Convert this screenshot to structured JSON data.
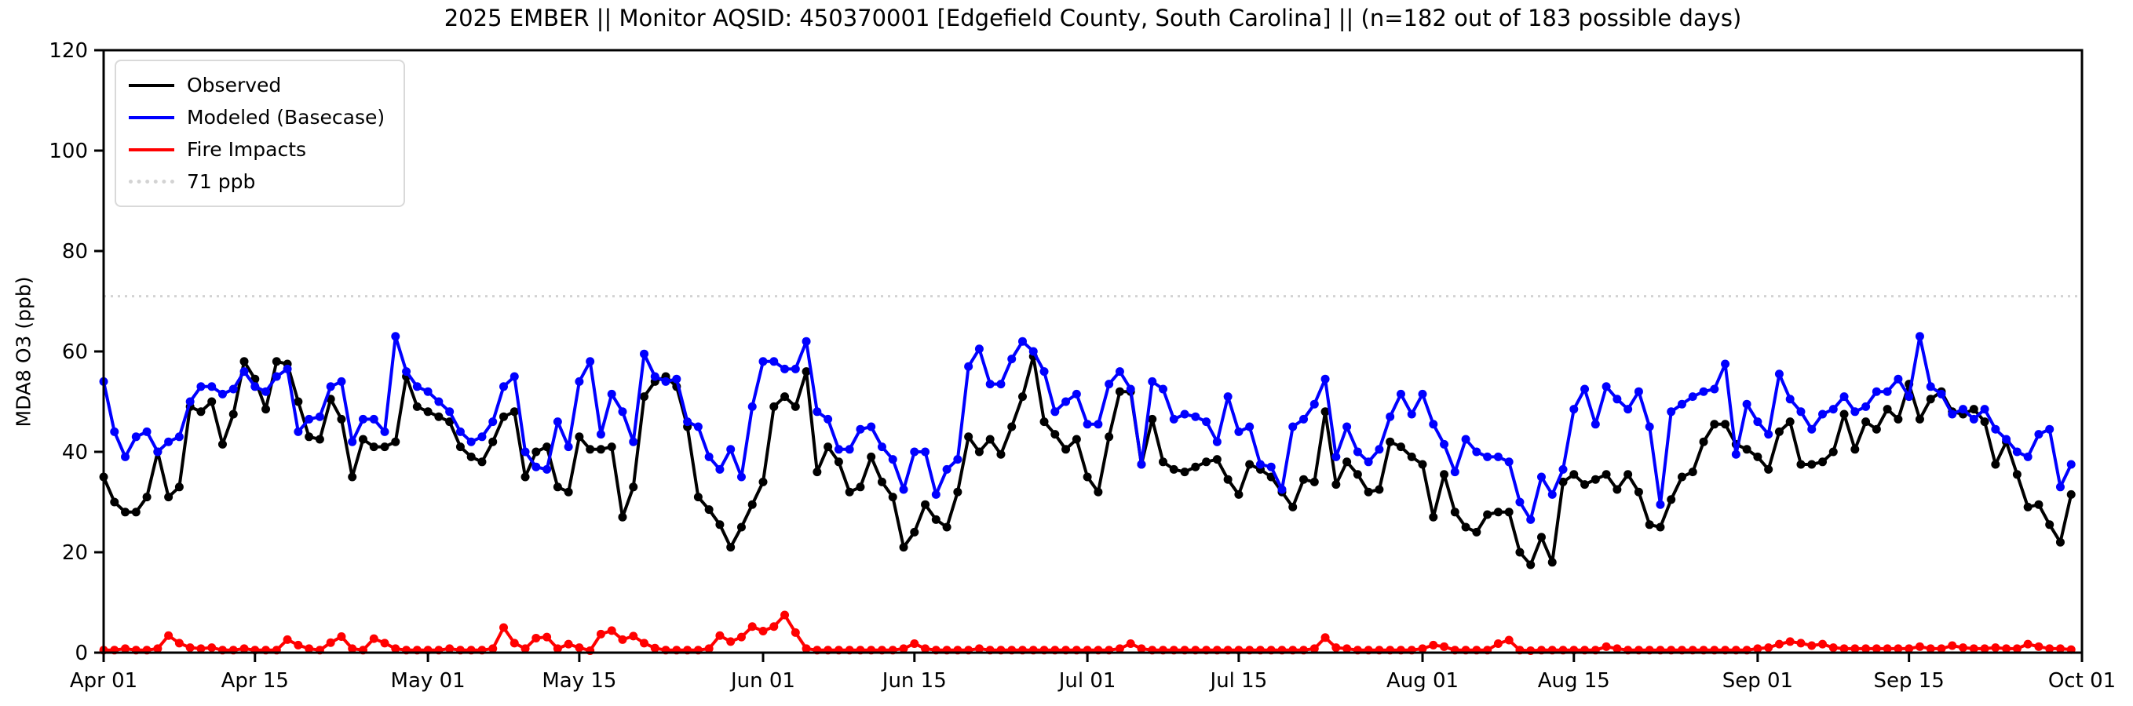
{
  "title": "2025 EMBER || Monitor AQSID: 450370001 [Edgefield County, South Carolina] || (n=182 out of 183 possible days)",
  "legend": {
    "items": [
      {
        "label": "Observed",
        "color": "#000000",
        "style": "solid"
      },
      {
        "label": "Modeled (Basecase)",
        "color": "#0000ff",
        "style": "solid"
      },
      {
        "label": "Fire Impacts",
        "color": "#ff0000",
        "style": "solid"
      },
      {
        "label": "71 ppb",
        "color": "#d3d3d3",
        "style": "dotted"
      }
    ]
  },
  "chart_data": {
    "type": "line",
    "title": "2025 EMBER || Monitor AQSID: 450370001 [Edgefield County, South Carolina] || (n=182 out of 183 possible days)",
    "xlabel": "",
    "ylabel": "MDA8 O3 (ppb)",
    "ylim": [
      0,
      120
    ],
    "yticks": [
      0,
      20,
      40,
      60,
      80,
      100,
      120
    ],
    "x_start_date": "Apr 01",
    "x_end_date": "Oct 01",
    "n_days": 183,
    "grid": false,
    "legend_position": "upper left",
    "threshold_line": {
      "value": 71,
      "label": "71 ppb",
      "color": "#d3d3d3",
      "style": "dotted"
    },
    "xticks": [
      {
        "day": 0,
        "label": "Apr 01"
      },
      {
        "day": 14,
        "label": "Apr 15"
      },
      {
        "day": 30,
        "label": "May 01"
      },
      {
        "day": 44,
        "label": "May 15"
      },
      {
        "day": 61,
        "label": "Jun 01"
      },
      {
        "day": 75,
        "label": "Jun 15"
      },
      {
        "day": 91,
        "label": "Jul 01"
      },
      {
        "day": 105,
        "label": "Jul 15"
      },
      {
        "day": 122,
        "label": "Aug 01"
      },
      {
        "day": 136,
        "label": "Aug 15"
      },
      {
        "day": 153,
        "label": "Sep 01"
      },
      {
        "day": 167,
        "label": "Sep 15"
      },
      {
        "day": 183,
        "label": "Oct 01"
      }
    ],
    "series": [
      {
        "name": "Observed",
        "color": "#000000",
        "values": [
          35,
          30,
          28,
          28,
          31,
          40,
          31,
          33,
          49,
          48,
          50,
          41.5,
          47.5,
          58,
          54.5,
          48.5,
          58,
          57.5,
          50,
          43,
          42.5,
          50.5,
          46.5,
          35,
          42.5,
          41,
          41,
          42,
          55,
          49,
          48,
          47,
          46,
          41,
          39,
          38,
          42,
          47,
          48,
          35,
          40,
          41,
          33,
          32,
          43,
          40.5,
          40.5,
          41,
          27,
          33,
          51,
          54,
          55,
          53,
          45,
          31,
          28.5,
          25.5,
          21,
          25,
          29.5,
          34,
          49,
          51,
          49,
          56,
          36,
          41,
          38,
          32,
          33,
          39,
          34,
          31,
          21,
          24,
          29.5,
          26.5,
          25,
          32,
          43,
          40,
          42.5,
          39.5,
          45,
          51,
          59,
          46,
          43.5,
          40.5,
          42.5,
          35,
          32,
          43,
          52,
          52,
          37.5,
          46.5,
          38,
          36.5,
          36,
          37,
          38,
          38.5,
          34.5,
          31.5,
          37.5,
          36.5,
          35,
          32,
          29,
          34.5,
          34,
          48,
          33.5,
          38,
          35.5,
          32,
          32.5,
          42,
          41,
          39,
          37.5,
          27,
          35.5,
          28,
          25,
          24,
          27.5,
          28,
          28,
          20,
          17.5,
          23,
          18,
          34,
          35.5,
          33.5,
          34.5,
          35.5,
          32.5,
          35.5,
          32,
          25.5,
          25,
          30.5,
          35,
          36,
          42,
          45.5,
          45.5,
          41.5,
          40.5,
          39,
          36.5,
          44,
          46,
          37.5,
          37.5,
          38,
          40,
          47.5,
          40.5,
          46,
          44.5,
          48.5,
          46.5,
          53.5,
          46.5,
          50.5,
          52,
          48,
          47.5,
          48.5,
          46,
          37.5,
          42,
          35.5,
          29,
          29.5,
          25.5,
          22,
          31.5
        ]
      },
      {
        "name": "Modeled (Basecase)",
        "color": "#0000ff",
        "values": [
          54,
          44,
          39,
          43,
          44,
          40,
          42,
          43,
          50,
          53,
          53,
          51.5,
          52.5,
          56,
          53,
          52,
          55,
          56.5,
          44,
          46.5,
          47,
          53,
          54,
          42,
          46.5,
          46.5,
          44,
          63,
          56,
          53,
          52,
          50,
          48,
          44,
          42,
          43,
          46,
          53,
          55,
          40,
          37,
          36.5,
          46,
          41,
          54,
          58,
          43.5,
          51.5,
          48,
          42,
          59.5,
          55,
          54,
          54.5,
          46,
          45,
          39,
          36.5,
          40.5,
          35,
          49,
          58,
          58,
          56.5,
          56.5,
          62,
          48,
          46.5,
          40.5,
          40.5,
          44.5,
          45,
          41,
          38.5,
          32.5,
          40,
          40,
          31.5,
          36.5,
          38.5,
          57,
          60.5,
          53.5,
          53.5,
          58.5,
          62,
          60,
          56,
          48,
          50,
          51.5,
          45.5,
          45.5,
          53.5,
          56,
          52.5,
          37.5,
          54,
          52.5,
          46.5,
          47.5,
          47,
          46,
          42,
          51,
          44,
          45,
          37.5,
          37,
          32.5,
          45,
          46.5,
          49.5,
          54.5,
          39,
          45,
          40,
          38,
          40.5,
          47,
          51.5,
          47.5,
          51.5,
          45.5,
          41.5,
          36,
          42.5,
          40,
          39,
          39,
          38,
          30,
          26.5,
          35,
          31.5,
          36.5,
          48.5,
          52.5,
          45.5,
          53,
          50.5,
          48.5,
          52,
          45,
          29.5,
          48,
          49.5,
          51,
          52,
          52.5,
          57.5,
          39.5,
          49.5,
          46,
          43.5,
          55.5,
          50.5,
          48,
          44.5,
          47.5,
          48.5,
          51,
          48,
          49,
          52,
          52,
          54.5,
          51,
          63,
          53,
          51.5,
          47.5,
          48.5,
          46.5,
          48.5,
          44.5,
          42.5,
          40,
          39,
          43.5,
          44.5,
          33,
          37.5
        ]
      },
      {
        "name": "Fire Impacts",
        "color": "#ff0000",
        "values": [
          0.5,
          0.5,
          0.8,
          0.5,
          0.5,
          0.8,
          3.4,
          1.9,
          1.0,
          0.8,
          1.0,
          0.5,
          0.5,
          0.8,
          0.5,
          0.5,
          0.5,
          2.6,
          1.5,
          0.8,
          0.5,
          2.0,
          3.2,
          0.8,
          0.5,
          2.8,
          1.9,
          0.8,
          0.5,
          0.5,
          0.5,
          0.5,
          0.8,
          0.5,
          0.5,
          0.5,
          0.8,
          5.0,
          1.9,
          0.8,
          2.9,
          3.1,
          0.8,
          1.7,
          1.0,
          0.4,
          3.7,
          4.4,
          2.6,
          3.3,
          1.9,
          0.9,
          0.5,
          0.5,
          0.5,
          0.5,
          0.8,
          3.4,
          2.2,
          3.1,
          5.2,
          4.3,
          5.2,
          7.5,
          4.0,
          0.8,
          0.5,
          0.5,
          0.5,
          0.5,
          0.5,
          0.5,
          0.5,
          0.5,
          0.8,
          1.8,
          0.8,
          0.5,
          0.5,
          0.5,
          0.5,
          0.8,
          0.5,
          0.5,
          0.5,
          0.5,
          0.5,
          0.5,
          0.5,
          0.5,
          0.5,
          0.5,
          0.5,
          0.5,
          0.8,
          1.8,
          0.8,
          0.5,
          0.5,
          0.5,
          0.5,
          0.5,
          0.5,
          0.5,
          0.5,
          0.5,
          0.5,
          0.5,
          0.5,
          0.5,
          0.5,
          0.5,
          0.8,
          3.0,
          1.0,
          0.8,
          0.5,
          0.5,
          0.5,
          0.5,
          0.5,
          0.5,
          0.8,
          1.5,
          1.2,
          0.5,
          0.5,
          0.5,
          0.5,
          1.8,
          2.5,
          0.5,
          0.4,
          0.5,
          0.5,
          0.5,
          0.5,
          0.5,
          0.5,
          1.2,
          0.8,
          0.5,
          0.5,
          0.5,
          0.5,
          0.5,
          0.5,
          0.5,
          0.5,
          0.5,
          0.5,
          0.5,
          0.5,
          0.8,
          1.0,
          1.7,
          2.2,
          1.9,
          1.4,
          1.7,
          1.0,
          0.8,
          0.8,
          0.8,
          0.8,
          0.8,
          0.8,
          0.8,
          1.2,
          0.8,
          0.8,
          1.4,
          1.0,
          0.8,
          0.8,
          1.0,
          0.8,
          0.8,
          1.7,
          1.2,
          0.8,
          0.8,
          0.6
        ]
      }
    ]
  }
}
